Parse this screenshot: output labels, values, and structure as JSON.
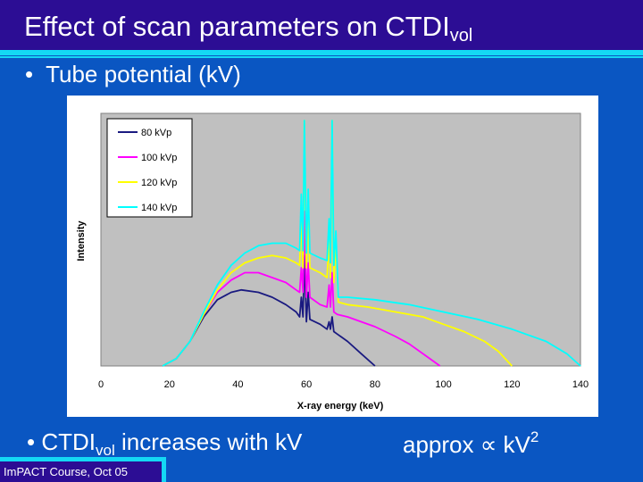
{
  "slide": {
    "title_main": "Effect of scan parameters on CTDI",
    "title_sub": "vol",
    "bullet1": "Tube potential (kV)",
    "bullet2_prefix": "CTDI",
    "bullet2_sub": "vol",
    "bullet2_suffix": "increases with kV",
    "formula_prefix": "approx ∝ kV",
    "formula_exp": "2",
    "footer": "ImPACT Course, Oct 05",
    "bullet_glyph": "•"
  },
  "colors": {
    "background": "#0a56c2",
    "title_bar": "#2c0d94",
    "accent": "#14d8f4",
    "plot_area": "#c0c0c0"
  },
  "chart_data": {
    "type": "line",
    "xlabel": "X-ray energy (keV)",
    "ylabel": "Intensity",
    "xlim": [
      0,
      140
    ],
    "ylim": [
      0,
      100
    ],
    "xticks": [
      0,
      20,
      40,
      60,
      80,
      100,
      120,
      140
    ],
    "grid": false,
    "legend_position": "top-left",
    "y_values_note": "relative intensity estimated from the plot, axis has no tick labels",
    "series": [
      {
        "name": "80 kVp",
        "color": "#1a1a80",
        "points": [
          [
            18,
            0
          ],
          [
            22,
            3
          ],
          [
            26,
            10
          ],
          [
            30,
            20
          ],
          [
            34,
            27
          ],
          [
            38,
            30
          ],
          [
            41,
            31
          ],
          [
            46,
            30
          ],
          [
            50,
            28
          ],
          [
            54,
            25
          ],
          [
            57,
            22
          ],
          [
            58,
            20
          ],
          [
            58.5,
            28
          ],
          [
            59,
            20
          ],
          [
            59.4,
            45
          ],
          [
            60,
            18
          ],
          [
            60.5,
            30
          ],
          [
            61,
            19
          ],
          [
            64,
            17
          ],
          [
            66,
            15
          ],
          [
            66.6,
            18
          ],
          [
            67,
            15
          ],
          [
            67.5,
            20
          ],
          [
            68,
            14
          ],
          [
            69,
            13
          ],
          [
            72,
            10
          ],
          [
            76,
            5
          ],
          [
            80,
            0
          ]
        ]
      },
      {
        "name": "100 kVp",
        "color": "#ff00ff",
        "points": [
          [
            18,
            0
          ],
          [
            22,
            3
          ],
          [
            26,
            10
          ],
          [
            30,
            21
          ],
          [
            34,
            30
          ],
          [
            38,
            35
          ],
          [
            42,
            38
          ],
          [
            46,
            38
          ],
          [
            50,
            36
          ],
          [
            54,
            34
          ],
          [
            57,
            31
          ],
          [
            58,
            30
          ],
          [
            58.5,
            40
          ],
          [
            59,
            30
          ],
          [
            59.4,
            63
          ],
          [
            60,
            28
          ],
          [
            60.5,
            42
          ],
          [
            61,
            28
          ],
          [
            64,
            25
          ],
          [
            66,
            24
          ],
          [
            66.6,
            33
          ],
          [
            67,
            24
          ],
          [
            67.5,
            38
          ],
          [
            68,
            22
          ],
          [
            69,
            21
          ],
          [
            72,
            20
          ],
          [
            76,
            18
          ],
          [
            80,
            16
          ],
          [
            86,
            12
          ],
          [
            90,
            9
          ],
          [
            95,
            4
          ],
          [
            99,
            0
          ]
        ]
      },
      {
        "name": "120 kVp",
        "color": "#ffff00",
        "points": [
          [
            18,
            0
          ],
          [
            22,
            3
          ],
          [
            26,
            10
          ],
          [
            30,
            21
          ],
          [
            34,
            31
          ],
          [
            38,
            38
          ],
          [
            42,
            42
          ],
          [
            46,
            44
          ],
          [
            50,
            45
          ],
          [
            54,
            44
          ],
          [
            57,
            42
          ],
          [
            58,
            41
          ],
          [
            58.5,
            60
          ],
          [
            59,
            40
          ],
          [
            59.4,
            100
          ],
          [
            60,
            40
          ],
          [
            60.5,
            62
          ],
          [
            61,
            40
          ],
          [
            64,
            38
          ],
          [
            66,
            36
          ],
          [
            66.6,
            52
          ],
          [
            67,
            36
          ],
          [
            67.5,
            100
          ],
          [
            68,
            34
          ],
          [
            68.6,
            50
          ],
          [
            69.3,
            26
          ],
          [
            72,
            25
          ],
          [
            78,
            24
          ],
          [
            86,
            22
          ],
          [
            94,
            20
          ],
          [
            100,
            17
          ],
          [
            106,
            14
          ],
          [
            112,
            10
          ],
          [
            116,
            6
          ],
          [
            120,
            0
          ]
        ]
      },
      {
        "name": "140 kVp",
        "color": "#00ffff",
        "points": [
          [
            18,
            0
          ],
          [
            22,
            3
          ],
          [
            26,
            10
          ],
          [
            30,
            22
          ],
          [
            34,
            33
          ],
          [
            38,
            41
          ],
          [
            42,
            46
          ],
          [
            46,
            49
          ],
          [
            50,
            50
          ],
          [
            54,
            50
          ],
          [
            57,
            48
          ],
          [
            58,
            47
          ],
          [
            58.5,
            70
          ],
          [
            59,
            47
          ],
          [
            59.4,
            100
          ],
          [
            60,
            46
          ],
          [
            60.5,
            72
          ],
          [
            61,
            46
          ],
          [
            64,
            44
          ],
          [
            66,
            43
          ],
          [
            66.6,
            60
          ],
          [
            67,
            42
          ],
          [
            67.5,
            100
          ],
          [
            68,
            41
          ],
          [
            68.6,
            55
          ],
          [
            69.3,
            28
          ],
          [
            72,
            28
          ],
          [
            80,
            27
          ],
          [
            90,
            25
          ],
          [
            100,
            22
          ],
          [
            110,
            19
          ],
          [
            120,
            15
          ],
          [
            130,
            10
          ],
          [
            136,
            5
          ],
          [
            140,
            0
          ]
        ]
      }
    ]
  }
}
